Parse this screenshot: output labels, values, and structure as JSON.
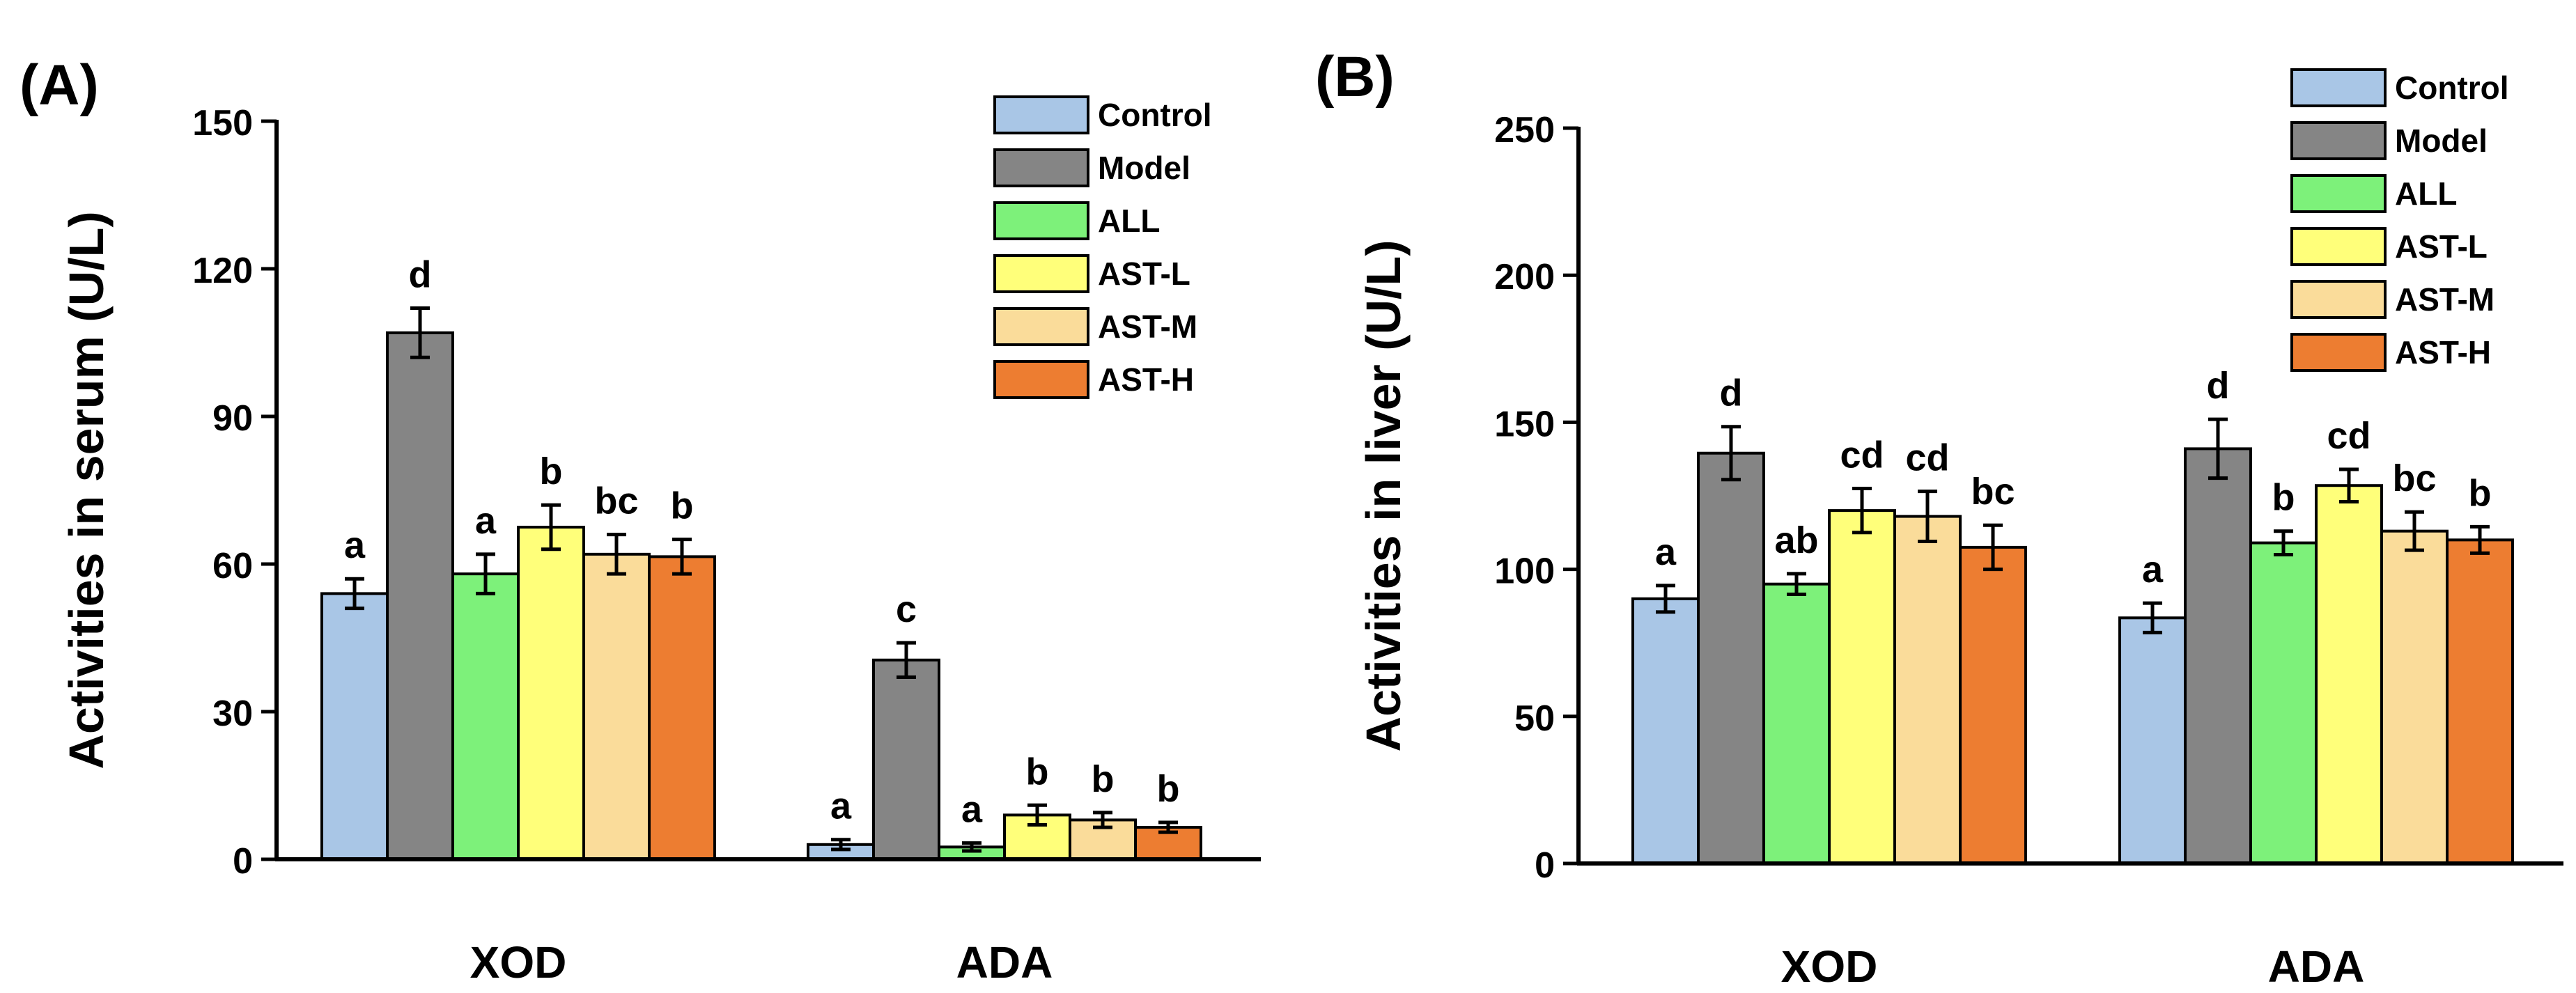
{
  "chart_data": [
    {
      "type": "bar",
      "panel_label": "(A)",
      "ylabel": "Activities in serum (U/L)",
      "xlabel": "",
      "ylim": [
        0,
        150
      ],
      "yticks": [
        0,
        30,
        60,
        90,
        120,
        150
      ],
      "categories": [
        "XOD",
        "ADA"
      ],
      "legend": {
        "placement": "top-right"
      },
      "series": [
        {
          "name": "Control",
          "color": "#a9c6e6",
          "values": [
            54,
            3
          ],
          "errors": [
            3,
            1
          ],
          "letters": [
            "a",
            "a"
          ]
        },
        {
          "name": "Model",
          "color": "#858585",
          "values": [
            107,
            40.5
          ],
          "errors": [
            5,
            3.5
          ],
          "letters": [
            "d",
            "c"
          ]
        },
        {
          "name": "ALL",
          "color": "#7df17a",
          "values": [
            58,
            2.5
          ],
          "errors": [
            4,
            0.8
          ],
          "letters": [
            "a",
            "a"
          ]
        },
        {
          "name": "AST-L",
          "color": "#ffff7a",
          "values": [
            67.5,
            9
          ],
          "errors": [
            4.5,
            2
          ],
          "letters": [
            "b",
            "b"
          ]
        },
        {
          "name": "AST-M",
          "color": "#fadc9a",
          "values": [
            62,
            8
          ],
          "errors": [
            4,
            1.5
          ],
          "letters": [
            "bc",
            "b"
          ]
        },
        {
          "name": "AST-H",
          "color": "#ed7d31",
          "values": [
            61.5,
            6.5
          ],
          "errors": [
            3.5,
            1
          ],
          "letters": [
            "b",
            "b"
          ]
        }
      ]
    },
    {
      "type": "bar",
      "panel_label": "(B)",
      "ylabel": "Activities in liver (U/L)",
      "xlabel": "",
      "ylim": [
        0,
        250
      ],
      "yticks": [
        0,
        50,
        100,
        150,
        200,
        250
      ],
      "categories": [
        "XOD",
        "ADA"
      ],
      "legend": {
        "placement": "top-right"
      },
      "series": [
        {
          "name": "Control",
          "color": "#a9c6e6",
          "values": [
            90,
            83.5
          ],
          "errors": [
            4.5,
            5
          ],
          "letters": [
            "a",
            "a"
          ]
        },
        {
          "name": "Model",
          "color": "#858585",
          "values": [
            139.5,
            141
          ],
          "errors": [
            9,
            10
          ],
          "letters": [
            "d",
            "d"
          ]
        },
        {
          "name": "ALL",
          "color": "#7df17a",
          "values": [
            95,
            109
          ],
          "errors": [
            3.5,
            4
          ],
          "letters": [
            "ab",
            "b"
          ]
        },
        {
          "name": "AST-L",
          "color": "#ffff7a",
          "values": [
            120,
            128.5
          ],
          "errors": [
            7.5,
            5.5
          ],
          "letters": [
            "cd",
            "cd"
          ]
        },
        {
          "name": "AST-M",
          "color": "#fadc9a",
          "values": [
            118,
            113
          ],
          "errors": [
            8.5,
            6.5
          ],
          "letters": [
            "cd",
            "bc"
          ]
        },
        {
          "name": "AST-H",
          "color": "#ed7d31",
          "values": [
            107.5,
            110
          ],
          "errors": [
            7.5,
            4.5
          ],
          "letters": [
            "bc",
            "b"
          ]
        }
      ]
    }
  ]
}
